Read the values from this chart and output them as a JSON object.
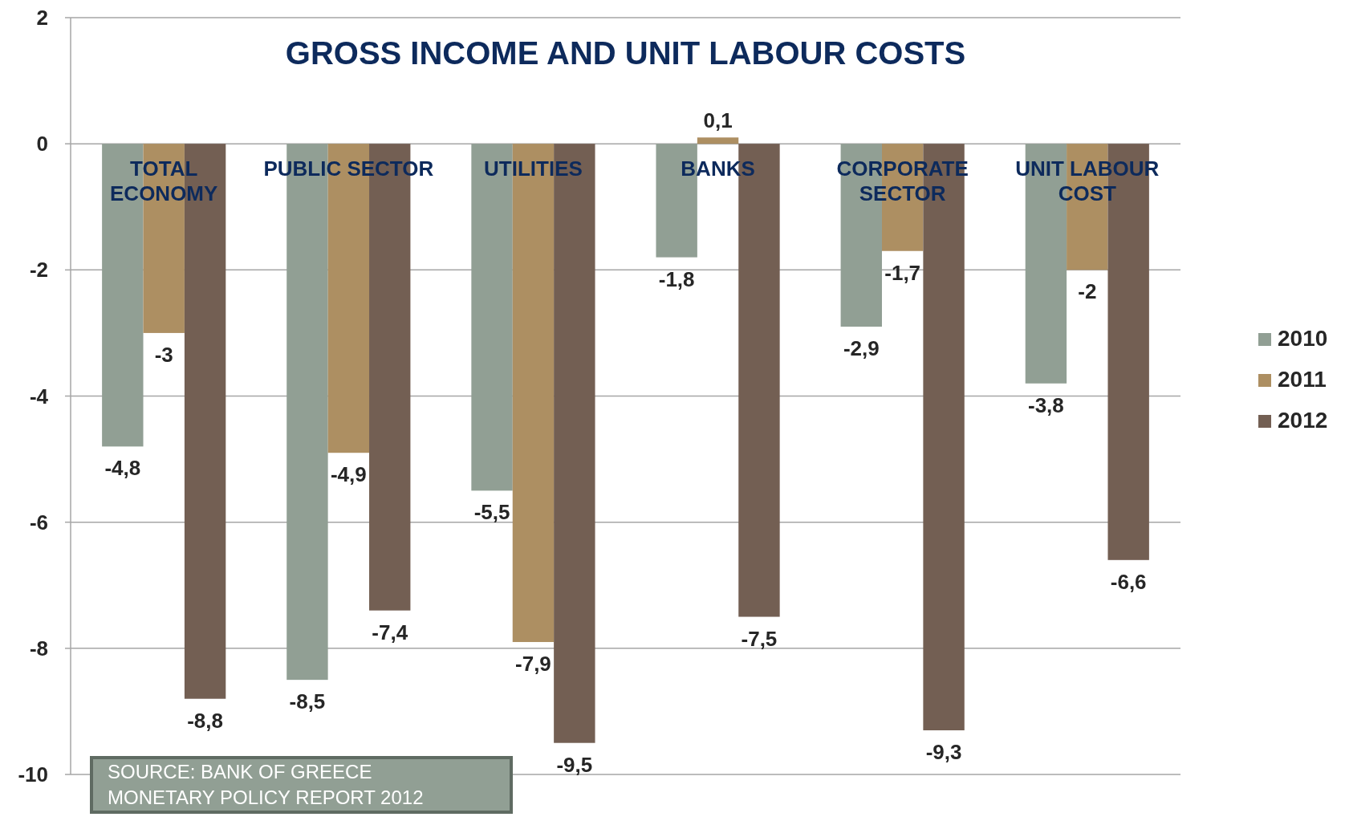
{
  "chart_data": {
    "type": "bar",
    "title": "GROSS INCOME AND UNIT LABOUR COSTS",
    "categories": [
      "TOTAL\nECONOMY",
      "PUBLIC SECTOR",
      "UTILITIES",
      "BANKS",
      "CORPORATE\nSECTOR",
      "UNIT LABOUR\nCOST"
    ],
    "series": [
      {
        "name": "2010",
        "color": "#919f94",
        "values": [
          -4.8,
          -8.5,
          -5.5,
          -1.8,
          -2.9,
          -3.8
        ],
        "value_labels": [
          "-4,8",
          "-8,5",
          "-5,5",
          "-1,8",
          "-2,9",
          "-3,8"
        ]
      },
      {
        "name": "2011",
        "color": "#ad8f62",
        "values": [
          -3,
          -4.9,
          -7.9,
          0.1,
          -1.7,
          -2
        ],
        "value_labels": [
          "-3",
          "-4,9",
          "-7,9",
          "0,1",
          "-1,7",
          "-2"
        ]
      },
      {
        "name": "2012",
        "color": "#735f53",
        "values": [
          -8.8,
          -7.4,
          -9.5,
          -7.5,
          -9.3,
          -6.6
        ],
        "value_labels": [
          "-8,8",
          "-7,4",
          "-9,5",
          "-7,5",
          "-9,3",
          "-6,6"
        ]
      }
    ],
    "ylim": [
      -10,
      2
    ],
    "yticks": [
      -10,
      -8,
      -6,
      -4,
      -2,
      0,
      2
    ],
    "grid": "y",
    "legend": "right",
    "annotations": [
      "SOURCE: BANK OF GREECE MONETARY POLICY REPORT 2012"
    ]
  }
}
